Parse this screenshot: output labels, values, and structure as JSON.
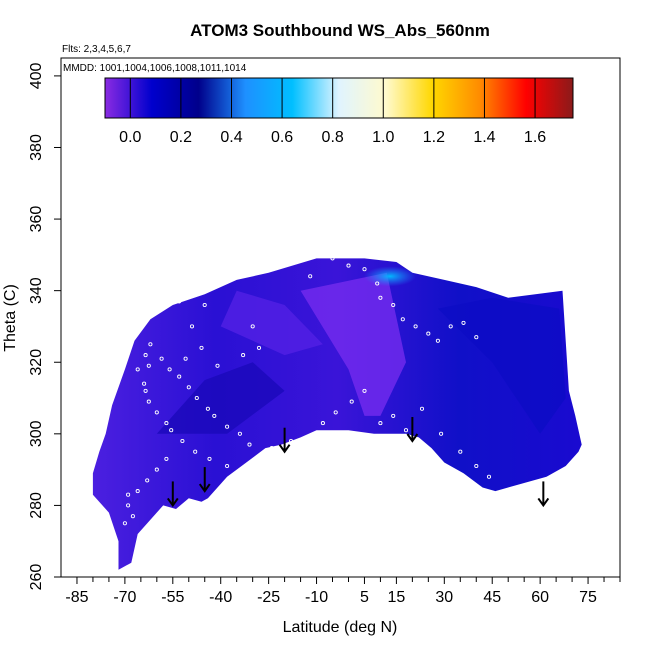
{
  "chart_data": {
    "type": "heatmap",
    "title": "ATOM3 Southbound WS_Abs_560nm",
    "annotations": {
      "flights": "Flts: 2,3,4,5,6,7",
      "dates": "MMDD: 1001,1004,1006,1008,1011,1014"
    },
    "xlabel": "Latitude (deg N)",
    "ylabel": "Theta (C)",
    "xlim": [
      -90,
      85
    ],
    "ylim": [
      260,
      405
    ],
    "x_ticks": [
      -85,
      -70,
      -55,
      -40,
      -25,
      -10,
      5,
      15,
      30,
      45,
      60,
      75
    ],
    "x_tick_labels": [
      "-85",
      "-70",
      "-55",
      "-40",
      "-25",
      "-10",
      "5",
      "15",
      "30",
      "45",
      "60",
      "75"
    ],
    "y_ticks": [
      260,
      280,
      300,
      320,
      340,
      360,
      380,
      400
    ],
    "y_tick_labels": [
      "260",
      "280",
      "300",
      "320",
      "340",
      "360",
      "380",
      "400"
    ],
    "colorbar": {
      "range": [
        -0.1,
        1.75
      ],
      "ticks": [
        0.0,
        0.2,
        0.4,
        0.6,
        0.8,
        1.0,
        1.2,
        1.4,
        1.6
      ],
      "tick_labels": [
        "0.0",
        "0.2",
        "0.4",
        "0.6",
        "0.8",
        "1.0",
        "1.2",
        "1.4",
        "1.6"
      ],
      "colors": [
        "#8a2be2",
        "#0000cd",
        "#00008b",
        "#1e90ff",
        "#00bfff",
        "#e0f4ff",
        "#fffacd",
        "#ffd700",
        "#ff8c00",
        "#ff0000",
        "#8b1a1a"
      ]
    },
    "field_outline": [
      [
        -72,
        262
      ],
      [
        -68,
        264
      ],
      [
        -66,
        272
      ],
      [
        -62,
        276
      ],
      [
        -58,
        280
      ],
      [
        -54,
        279
      ],
      [
        -50,
        282
      ],
      [
        -46,
        281
      ],
      [
        -44,
        282
      ],
      [
        -38,
        288
      ],
      [
        -32,
        292
      ],
      [
        -26,
        296
      ],
      [
        -21,
        297
      ],
      [
        -15,
        299
      ],
      [
        -10,
        301
      ],
      [
        0,
        301
      ],
      [
        8,
        300
      ],
      [
        18,
        300
      ],
      [
        22,
        299
      ],
      [
        26,
        296
      ],
      [
        30,
        292
      ],
      [
        36,
        289
      ],
      [
        42,
        285
      ],
      [
        46,
        284
      ],
      [
        54,
        286
      ],
      [
        62,
        288
      ],
      [
        68,
        291
      ],
      [
        72,
        295
      ],
      [
        73,
        297
      ],
      [
        71,
        305
      ],
      [
        69,
        312
      ],
      [
        67,
        340
      ],
      [
        50,
        338
      ],
      [
        40,
        341
      ],
      [
        30,
        343
      ],
      [
        20,
        345
      ],
      [
        15,
        348
      ],
      [
        5,
        349
      ],
      [
        -10,
        349
      ],
      [
        -25,
        345
      ],
      [
        -35,
        343
      ],
      [
        -45,
        339
      ],
      [
        -55,
        336
      ],
      [
        -62,
        332
      ],
      [
        -67,
        326
      ],
      [
        -70,
        318
      ],
      [
        -74,
        308
      ],
      [
        -76,
        300
      ],
      [
        -78,
        295
      ],
      [
        -80,
        289
      ],
      [
        -80,
        283
      ],
      [
        -75,
        278
      ],
      [
        -72,
        270
      ]
    ],
    "sample_points": [
      [
        -62.0,
        325
      ],
      [
        -63.5,
        322
      ],
      [
        -66.0,
        318
      ],
      [
        -62.5,
        319
      ],
      [
        -64.0,
        314
      ],
      [
        -63.5,
        312
      ],
      [
        -62.5,
        309
      ],
      [
        -60.0,
        306
      ],
      [
        -57.0,
        303
      ],
      [
        -55.5,
        301
      ],
      [
        -52.0,
        298
      ],
      [
        -48.0,
        295
      ],
      [
        -43.5,
        293
      ],
      [
        -38.0,
        291
      ],
      [
        -32.0,
        289
      ],
      [
        -58.5,
        321
      ],
      [
        -56.0,
        318
      ],
      [
        -53.0,
        316
      ],
      [
        -50.0,
        313
      ],
      [
        -47.5,
        310
      ],
      [
        -44.0,
        307
      ],
      [
        -42.0,
        305
      ],
      [
        -38.0,
        302
      ],
      [
        -34.0,
        300
      ],
      [
        -31.0,
        297
      ],
      [
        -28.0,
        324
      ],
      [
        -33.0,
        322
      ],
      [
        -41.0,
        319
      ],
      [
        -51.0,
        321
      ],
      [
        -46.0,
        324
      ],
      [
        -49.0,
        330
      ],
      [
        -53.0,
        337
      ],
      [
        -45.0,
        336
      ],
      [
        -30.0,
        330
      ],
      [
        -12.0,
        344
      ],
      [
        -5.0,
        349
      ],
      [
        0.0,
        347
      ],
      [
        5.0,
        346
      ],
      [
        9.0,
        342
      ],
      [
        10.0,
        338
      ],
      [
        14.0,
        336
      ],
      [
        17.0,
        332
      ],
      [
        21.0,
        330
      ],
      [
        25.0,
        328
      ],
      [
        28.0,
        326
      ],
      [
        32.0,
        330
      ],
      [
        36.0,
        331
      ],
      [
        40.0,
        327
      ],
      [
        -24.0,
        296
      ],
      [
        -18.0,
        298
      ],
      [
        -8.0,
        303
      ],
      [
        -4.0,
        306
      ],
      [
        1.0,
        309
      ],
      [
        5.0,
        312
      ],
      [
        10.0,
        303
      ],
      [
        14.0,
        305
      ],
      [
        18.0,
        301
      ],
      [
        23.0,
        307
      ],
      [
        29.0,
        300
      ],
      [
        35.0,
        295
      ],
      [
        40.0,
        291
      ],
      [
        44.0,
        288
      ],
      [
        -57.0,
        293
      ],
      [
        -60.0,
        290
      ],
      [
        -63.0,
        287
      ],
      [
        -66.0,
        284
      ],
      [
        -69.0,
        280
      ],
      [
        -67.5,
        277
      ],
      [
        -70.0,
        275
      ],
      [
        -69.0,
        283
      ]
    ],
    "arrows_latitude": [
      -55,
      -45,
      -20,
      20,
      61
    ],
    "arrow_tip_theta": [
      280,
      284,
      295,
      298,
      280
    ]
  }
}
